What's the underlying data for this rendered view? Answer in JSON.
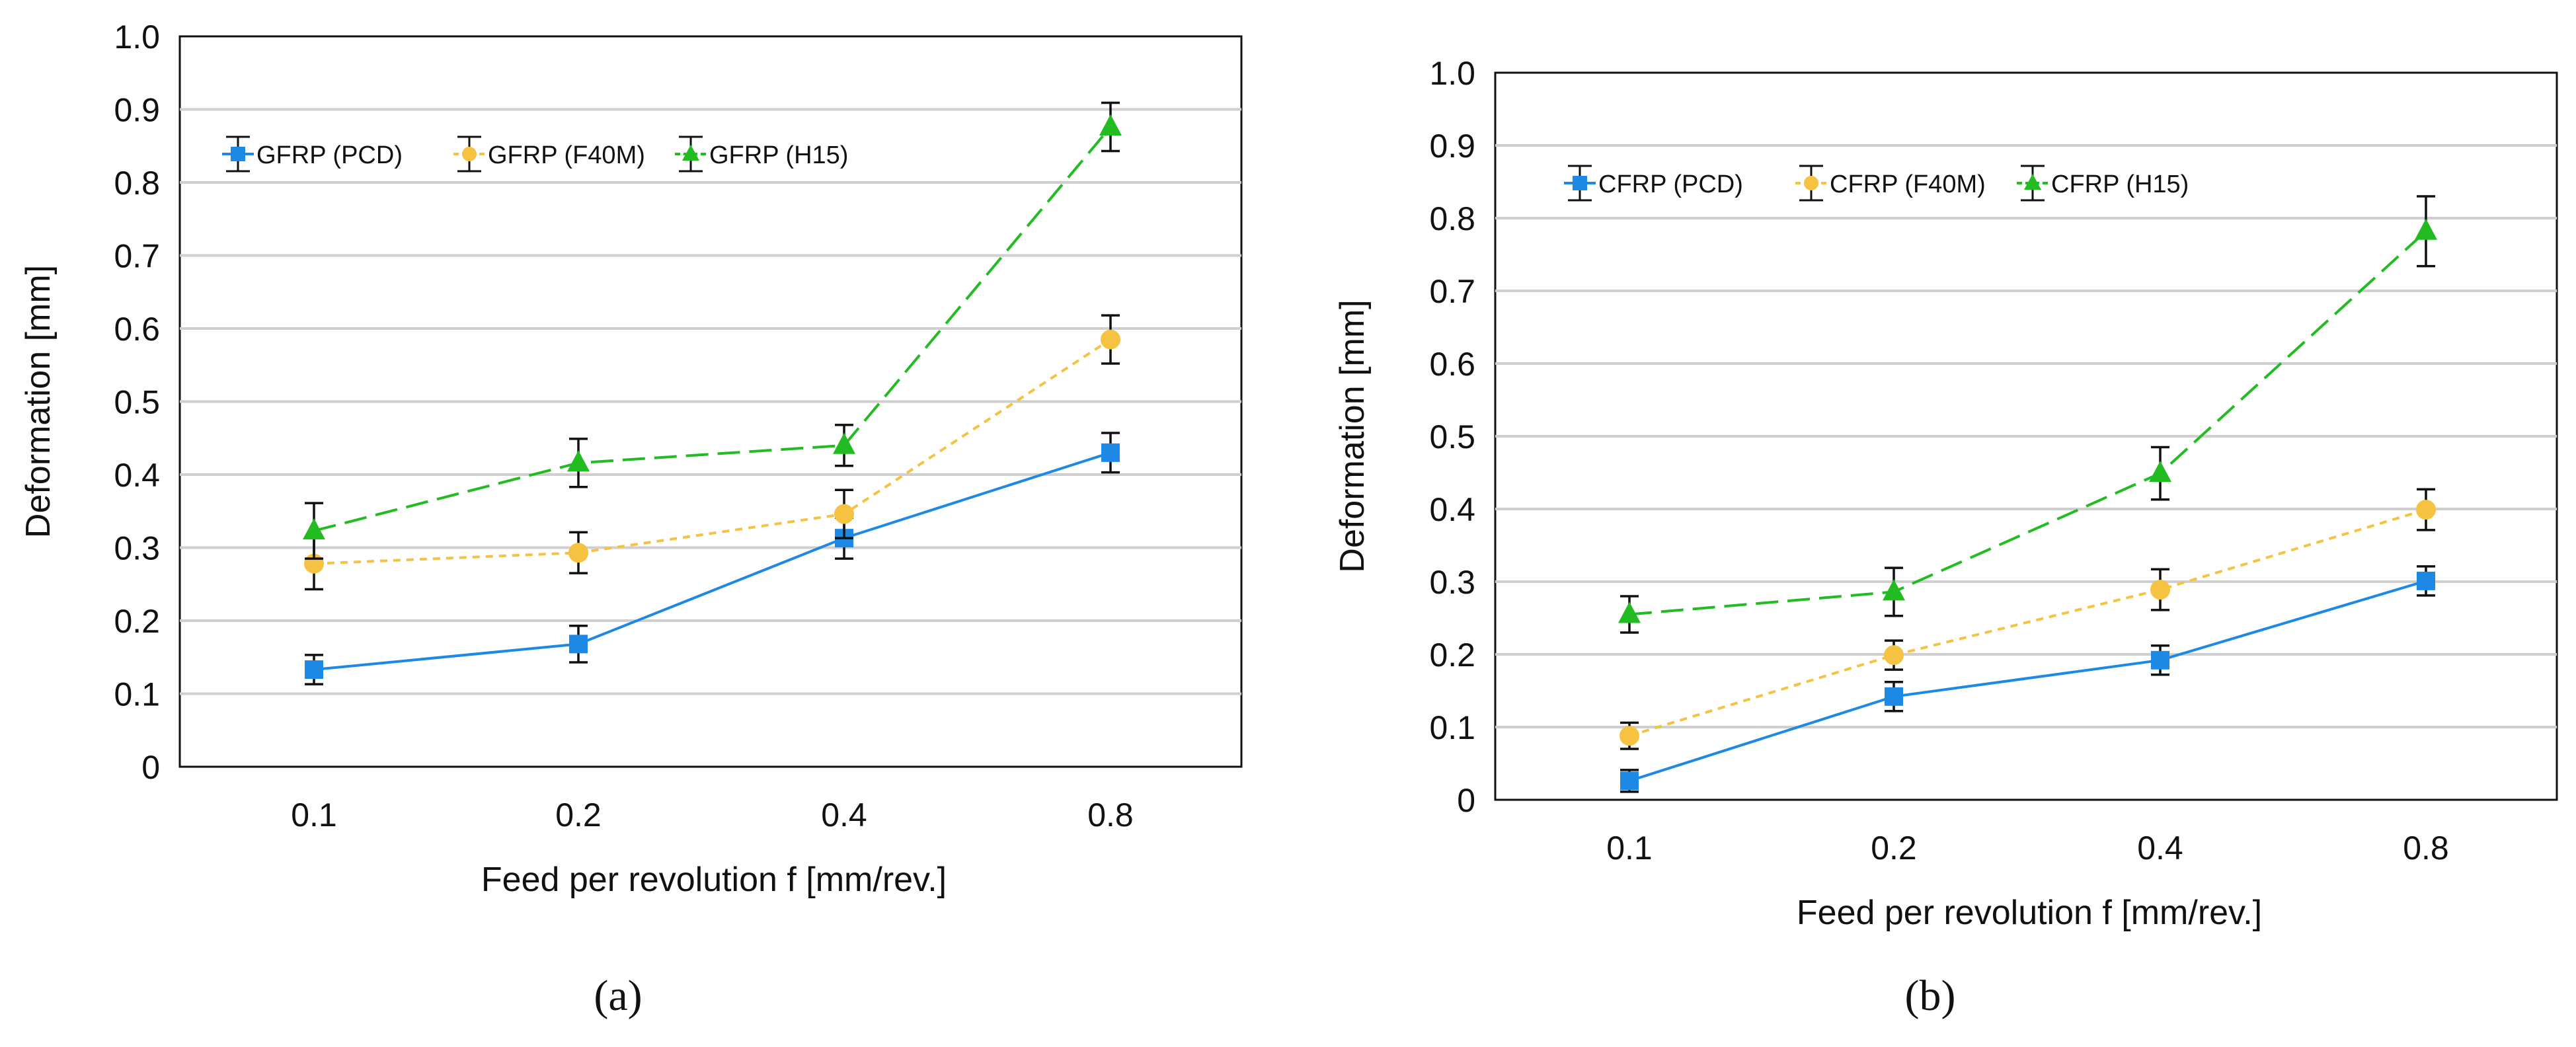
{
  "chart_data": [
    {
      "type": "line",
      "panel_label": "(a)",
      "categories": [
        "0.1",
        "0.2",
        "0.4",
        "0.8"
      ],
      "xlabel": "Feed per revolution f [mm/rev.]",
      "ylabel": "Deformation [mm]",
      "ylim": [
        0,
        1.0
      ],
      "yticks": [
        "0",
        "0.1",
        "0.2",
        "0.3",
        "0.4",
        "0.5",
        "0.6",
        "0.7",
        "0.8",
        "0.9",
        "1.0"
      ],
      "grid": "horizontal",
      "legend_position": "top-left",
      "series": [
        {
          "name": "GFRP (PCD)",
          "color": "#1e88e5",
          "marker": "square",
          "line": "solid",
          "values": [
            0.133,
            0.168,
            0.313,
            0.43
          ],
          "errors": [
            0.02,
            0.025,
            0.028,
            0.027
          ]
        },
        {
          "name": "GFRP (F40M)",
          "color": "#f5c242",
          "marker": "circle",
          "line": "dotted",
          "values": [
            0.278,
            0.293,
            0.346,
            0.585
          ],
          "errors": [
            0.035,
            0.028,
            0.033,
            0.033
          ]
        },
        {
          "name": "GFRP (H15)",
          "color": "#22bb22",
          "marker": "triangle",
          "line": "dashed",
          "values": [
            0.323,
            0.416,
            0.44,
            0.876
          ],
          "errors": [
            0.038,
            0.033,
            0.028,
            0.033
          ]
        }
      ]
    },
    {
      "type": "line",
      "panel_label": "(b)",
      "categories": [
        "0.1",
        "0.2",
        "0.4",
        "0.8"
      ],
      "xlabel": "Feed per revolution f [mm/rev.]",
      "ylabel": "Deformation [mm]",
      "ylim": [
        0,
        1.0
      ],
      "yticks": [
        "0",
        "0.1",
        "0.2",
        "0.3",
        "0.4",
        "0.5",
        "0.6",
        "0.7",
        "0.8",
        "0.9",
        "1.0"
      ],
      "grid": "horizontal",
      "legend_position": "top-left",
      "series": [
        {
          "name": "CFRP (PCD)",
          "color": "#1e88e5",
          "marker": "square",
          "line": "solid",
          "values": [
            0.026,
            0.142,
            0.192,
            0.301
          ],
          "errors": [
            0.015,
            0.02,
            0.02,
            0.02
          ]
        },
        {
          "name": "CFRP (F40M)",
          "color": "#f5c242",
          "marker": "circle",
          "line": "dotted",
          "values": [
            0.088,
            0.199,
            0.289,
            0.399
          ],
          "errors": [
            0.018,
            0.02,
            0.028,
            0.028
          ]
        },
        {
          "name": "CFRP (H15)",
          "color": "#22bb22",
          "marker": "triangle",
          "line": "dashed",
          "values": [
            0.255,
            0.286,
            0.449,
            0.782
          ],
          "errors": [
            0.025,
            0.033,
            0.036,
            0.048
          ]
        }
      ]
    }
  ]
}
